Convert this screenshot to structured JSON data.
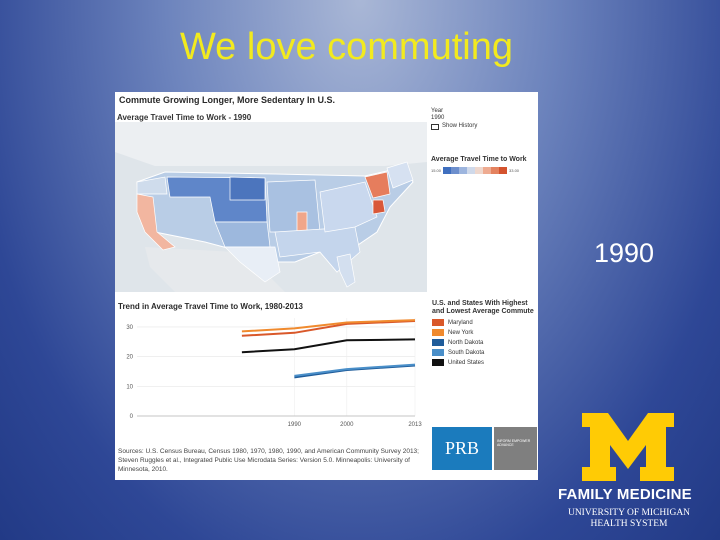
{
  "slide": {
    "title": "We love commuting",
    "year_label": "1990"
  },
  "figure": {
    "title": "Commute Growing Longer, More Sedentary In U.S.",
    "map_subtitle": "Average Travel Time to Work - 1990",
    "year_control": {
      "label": "Year",
      "value": "1990",
      "show_history_label": "Show History"
    },
    "map_legend": {
      "title": "Average Travel Time to Work",
      "min_label": "15.00",
      "max_label": "33.00"
    },
    "chart_title": "Trend in Average Travel Time to Work, 1980-2013",
    "series_legend_title": "U.S. and States With Highest and Lowest Average Commute",
    "sources": "Sources: U.S. Census Bureau, Census 1980, 1970, 1980, 1990, and American Community Survey 2013; Steven Ruggles et al., Integrated Public Use Microdata Series: Version 5.0. Minneapolis: University of Minnesota, 2010.",
    "prb_label": "PRB",
    "prb_tagline": "INFORM EMPOWER ADVANCE"
  },
  "chart_data": {
    "type": "line",
    "x": [
      1980,
      1990,
      2000,
      2013
    ],
    "xticks": [
      "1990",
      "2000",
      "2013"
    ],
    "yticks": [
      "0",
      "10",
      "20",
      "30"
    ],
    "ylim": [
      0,
      33
    ],
    "xlim": [
      1960,
      2013
    ],
    "series": [
      {
        "name": "Maryland",
        "color": "#d9582a",
        "values": [
          27,
          28,
          31,
          32
        ]
      },
      {
        "name": "New York",
        "color": "#f08a2e",
        "values": [
          28.5,
          29.5,
          31.5,
          32.3
        ]
      },
      {
        "name": "North Dakota",
        "color": "#1f5c9a",
        "values": [
          null,
          13,
          15.5,
          17
        ]
      },
      {
        "name": "South Dakota",
        "color": "#4a8fc9",
        "values": [
          null,
          13.5,
          15.8,
          17.3
        ]
      },
      {
        "name": "United States",
        "color": "#111111",
        "values": [
          21.5,
          22.5,
          25.5,
          25.8
        ]
      }
    ]
  },
  "logo": {
    "line1": "FAMILY MEDICINE",
    "line2": "UNIVERSITY OF MICHIGAN",
    "line3": "HEALTH SYSTEM",
    "colors": {
      "maize": "#ffcb05"
    }
  }
}
